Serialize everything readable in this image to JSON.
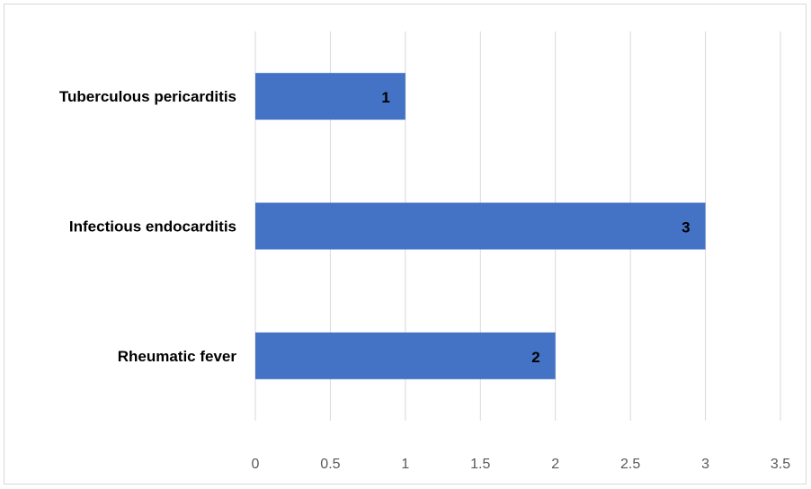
{
  "chart_data": {
    "type": "bar",
    "orientation": "horizontal",
    "categories": [
      "Tuberculous pericarditis",
      "Infectious endocarditis",
      "Rheumatic fever"
    ],
    "values": [
      1,
      3,
      2
    ],
    "data_labels": [
      "1",
      "3",
      "2"
    ],
    "xlim": [
      0,
      3.5
    ],
    "x_ticks": [
      0,
      0.5,
      1,
      1.5,
      2,
      2.5,
      3,
      3.5
    ],
    "x_tick_labels": [
      "0",
      "0.5",
      "1",
      "1.5",
      "2",
      "2.5",
      "3",
      "3.5"
    ],
    "title": "",
    "xlabel": "",
    "ylabel": "",
    "grid": "vertical",
    "legend": "none",
    "bar_color": "#4472c4",
    "grid_color": "#d9d9d9"
  }
}
